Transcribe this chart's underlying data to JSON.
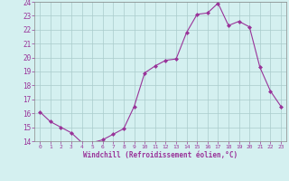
{
  "x": [
    0,
    1,
    2,
    3,
    4,
    5,
    6,
    7,
    8,
    9,
    10,
    11,
    12,
    13,
    14,
    15,
    16,
    17,
    18,
    19,
    20,
    21,
    22,
    23
  ],
  "y": [
    16.1,
    15.4,
    15.0,
    14.6,
    13.9,
    13.9,
    14.1,
    14.5,
    14.9,
    16.5,
    18.9,
    19.4,
    19.8,
    19.9,
    21.8,
    23.1,
    23.2,
    23.9,
    22.3,
    22.6,
    22.2,
    19.3,
    17.6,
    16.5
  ],
  "line_color": "#993399",
  "marker": "D",
  "marker_size": 2,
  "bg_color": "#d4f0f0",
  "grid_color": "#aacccc",
  "xlabel": "Windchill (Refroidissement éolien,°C)",
  "xlabel_color": "#993399",
  "tick_color": "#993399",
  "ylim": [
    14,
    24
  ],
  "xlim": [
    -0.5,
    23.5
  ],
  "yticks": [
    14,
    15,
    16,
    17,
    18,
    19,
    20,
    21,
    22,
    23,
    24
  ],
  "xticks": [
    0,
    1,
    2,
    3,
    4,
    5,
    6,
    7,
    8,
    9,
    10,
    11,
    12,
    13,
    14,
    15,
    16,
    17,
    18,
    19,
    20,
    21,
    22,
    23
  ]
}
